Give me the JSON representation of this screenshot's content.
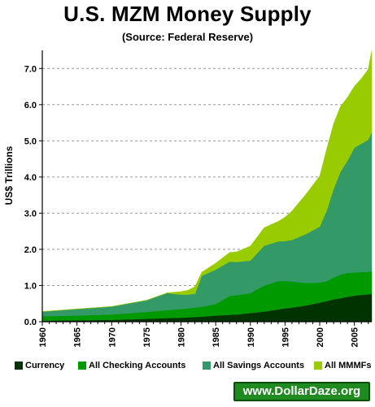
{
  "chart_data": {
    "type": "area",
    "stacked": true,
    "title": "U.S. MZM Money Supply",
    "subtitle": "(Source: Federal Reserve)",
    "ylabel": "US$ Trillions",
    "xlabel": "",
    "xlim": [
      1960,
      2007.5
    ],
    "ylim": [
      0,
      7.5
    ],
    "grid": "horizontal dashed",
    "legend_position": "bottom",
    "x_ticks": [
      "1960",
      "1965",
      "1970",
      "1975",
      "1980",
      "1985",
      "1990",
      "1995",
      "2000",
      "2005"
    ],
    "y_ticks": [
      "0.0",
      "1.0",
      "2.0",
      "3.0",
      "4.0",
      "5.0",
      "6.0",
      "7.0"
    ],
    "x": [
      1960,
      1965,
      1970,
      1975,
      1978,
      1980,
      1981,
      1982,
      1983,
      1985,
      1987,
      1988,
      1990,
      1992,
      1994,
      1995,
      1996,
      1998,
      2000,
      2001,
      2002,
      2003,
      2004,
      2005,
      2006,
      2007,
      2007.5
    ],
    "series": [
      {
        "name": "Currency",
        "color": "#003300",
        "values": [
          0.03,
          0.04,
          0.05,
          0.08,
          0.1,
          0.11,
          0.12,
          0.13,
          0.14,
          0.17,
          0.19,
          0.2,
          0.24,
          0.28,
          0.34,
          0.37,
          0.39,
          0.45,
          0.53,
          0.57,
          0.62,
          0.65,
          0.69,
          0.72,
          0.74,
          0.76,
          0.77
        ]
      },
      {
        "name": "All Checking Accounts",
        "color": "#009900",
        "values": [
          0.12,
          0.13,
          0.15,
          0.19,
          0.22,
          0.24,
          0.25,
          0.26,
          0.27,
          0.32,
          0.52,
          0.53,
          0.55,
          0.72,
          0.78,
          0.76,
          0.72,
          0.62,
          0.55,
          0.55,
          0.6,
          0.65,
          0.66,
          0.64,
          0.63,
          0.62,
          0.62
        ]
      },
      {
        "name": "All Savings Accounts",
        "color": "#339966",
        "values": [
          0.13,
          0.18,
          0.22,
          0.32,
          0.47,
          0.4,
          0.38,
          0.38,
          0.86,
          0.95,
          0.95,
          0.92,
          0.9,
          1.1,
          1.1,
          1.1,
          1.15,
          1.35,
          1.55,
          1.95,
          2.45,
          2.85,
          3.1,
          3.45,
          3.55,
          3.65,
          3.85
        ]
      },
      {
        "name": "All MMMFs",
        "color": "#99cc00",
        "values": [
          0.0,
          0.0,
          0.0,
          0.0,
          0.01,
          0.08,
          0.12,
          0.2,
          0.1,
          0.18,
          0.25,
          0.28,
          0.4,
          0.5,
          0.55,
          0.66,
          0.8,
          1.1,
          1.4,
          1.7,
          1.8,
          1.8,
          1.75,
          1.7,
          1.8,
          1.95,
          2.25
        ]
      }
    ]
  },
  "watermark": "www.DollarDaze.org"
}
